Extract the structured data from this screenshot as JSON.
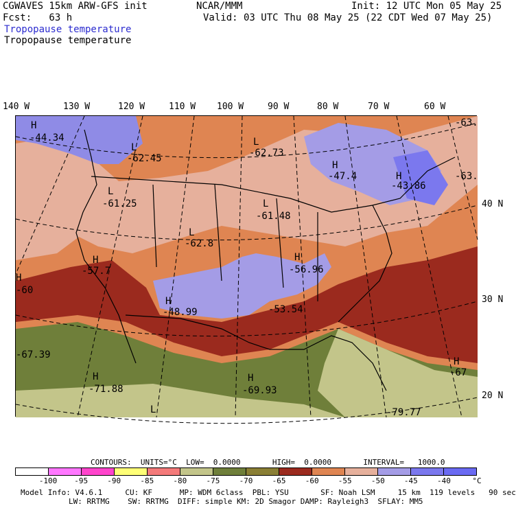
{
  "header": {
    "model": "CGWAVES 15km ARW-GFS init",
    "org": "NCAR/MMM",
    "init": "Init: 12 UTC Mon 05 May 25",
    "fcst": "Fcst:   63 h",
    "valid": "Valid: 03 UTC Thu 08 May 25 (22 CDT Wed 07 May 25)",
    "field1": "Tropopause temperature",
    "field2": "Tropopause temperature"
  },
  "lon_labels": [
    "140 W",
    "130 W",
    "120 W",
    "110 W",
    "100 W",
    "90 W",
    "80 W",
    "70 W",
    "60 W"
  ],
  "lat_labels": [
    "40 N",
    "30 N",
    "20 N"
  ],
  "centers": [
    {
      "type": "H",
      "value": "-44.34"
    },
    {
      "type": "L",
      "value": "-62.45"
    },
    {
      "type": "L",
      "value": "-62.73"
    },
    {
      "type": "H",
      "value": "-47.4"
    },
    {
      "type": "H",
      "value": "-43.86"
    },
    {
      "type": "",
      "value": "-63."
    },
    {
      "type": "",
      "value": "-63."
    },
    {
      "type": "L",
      "value": "-61.25"
    },
    {
      "type": "L",
      "value": "-61.48"
    },
    {
      "type": "L",
      "value": "-62.8"
    },
    {
      "type": "H",
      "value": "-57.7"
    },
    {
      "type": "H",
      "value": "-56.96"
    },
    {
      "type": "H",
      "value": "-60"
    },
    {
      "type": "H",
      "value": "-48.99"
    },
    {
      "type": "",
      "value": "-53.54"
    },
    {
      "type": "",
      "value": "-67.39"
    },
    {
      "type": "H",
      "value": "-71.88"
    },
    {
      "type": "H",
      "value": "-69.93"
    },
    {
      "type": "H",
      "value": "-67"
    },
    {
      "type": "L",
      "value": ""
    },
    {
      "type": "",
      "value": "-79.77"
    }
  ],
  "contours": {
    "text": "CONTOURS:  UNITS=°C  LOW=  0.0000       HIGH=  0.0000       INTERVAL=   1000.0"
  },
  "colorbar": {
    "colors": [
      "#ffffff",
      "#ff77ff",
      "#ff44cc",
      "#ffff77",
      "#f47a7a",
      "#c3c58a",
      "#6f7f3a",
      "#8a7f35",
      "#9b2a1e",
      "#df8552",
      "#e6b09c",
      "#a49ce6",
      "#7b78ee",
      "#6a6af2"
    ],
    "labels": [
      "-100",
      "-95",
      "-90",
      "-85",
      "-80",
      "-75",
      "-70",
      "-65",
      "-60",
      "-55",
      "-50",
      "-45",
      "-40",
      "°C"
    ]
  },
  "footer": {
    "line1": "Model Info: V4.6.1     CU: KF      MP: WDM 6class  PBL: YSU       SF: Noah LSM     15 km  119 levels   90 sec",
    "line2": "LW: RRTMG    SW: RRTMG  DIFF: simple KM: 2D Smagor DAMP: Rayleigh3  SFLAY: MM5"
  }
}
